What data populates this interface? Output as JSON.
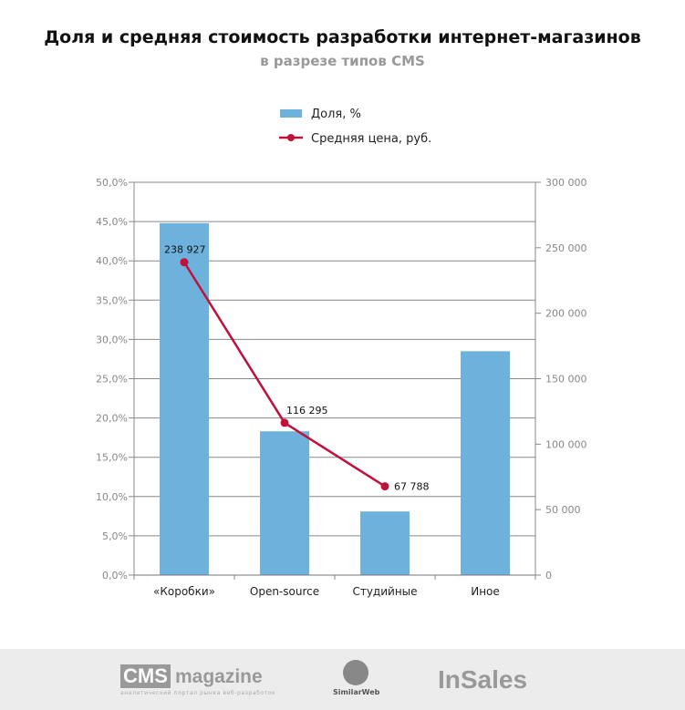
{
  "chart_data": {
    "type": "bar+line",
    "title": "Доля и средняя стоимость разработки интернет-магазинов",
    "subtitle": "в разрезе типов CMS",
    "categories": [
      "«Коробки»",
      "Open-source",
      "Студийные",
      "Иное"
    ],
    "series": [
      {
        "name": "Доля, %",
        "type": "bar",
        "axis": "left",
        "values": [
          44.8,
          18.3,
          8.1,
          28.5
        ],
        "color": "#6cb2dc"
      },
      {
        "name": "Средняя цена, руб.",
        "type": "line",
        "axis": "right",
        "values": [
          238927,
          116295,
          67788,
          null
        ],
        "labels": [
          "238 927",
          "116 295",
          "67 788",
          ""
        ],
        "color": "#c0113a"
      }
    ],
    "y_left": {
      "range": [
        0,
        50
      ],
      "ticks": [
        "0,0%",
        "5,0%",
        "10,0%",
        "15,0%",
        "20,0%",
        "25,0%",
        "30,0%",
        "35,0%",
        "40,0%",
        "45,0%",
        "50,0%"
      ]
    },
    "y_right": {
      "range": [
        0,
        300000
      ],
      "ticks": [
        "0",
        "50 000",
        "100 000",
        "150 000",
        "200 000",
        "250 000",
        "300 000"
      ]
    },
    "grid": true,
    "legend": "top-center"
  },
  "footer": {
    "cms_box": "CMS",
    "cms_mag": "magazine",
    "cms_sub": "аналитический портал рынка веб-разработок",
    "similarweb": "SimilarWeb",
    "insales": "InSales"
  }
}
